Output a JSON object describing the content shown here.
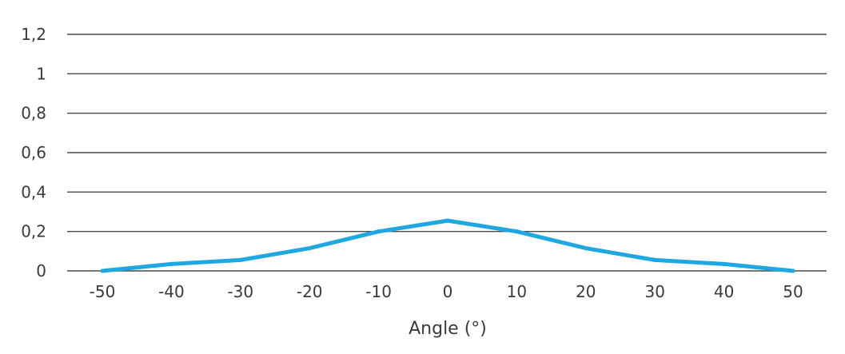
{
  "chart_data": {
    "type": "line",
    "title": "",
    "xlabel": "Angle (°)",
    "ylabel": "",
    "categories": [
      "-50",
      "-40",
      "-30",
      "-20",
      "-10",
      "0",
      "10",
      "20",
      "30",
      "40",
      "50"
    ],
    "x": [
      -50,
      -40,
      -30,
      -20,
      -10,
      0,
      10,
      20,
      30,
      40,
      50
    ],
    "y_ticks": [
      "0",
      "0,2",
      "0,4",
      "0,6",
      "0,8",
      "1",
      "1,2"
    ],
    "ylim": [
      0,
      1.2
    ],
    "grid": "horizontal",
    "legend": "none",
    "series": [
      {
        "color": "#1ea7e1",
        "values": [
          0.0,
          0.035,
          0.055,
          0.115,
          0.2,
          0.255,
          0.2,
          0.115,
          0.055,
          0.035,
          0.0
        ]
      }
    ]
  }
}
